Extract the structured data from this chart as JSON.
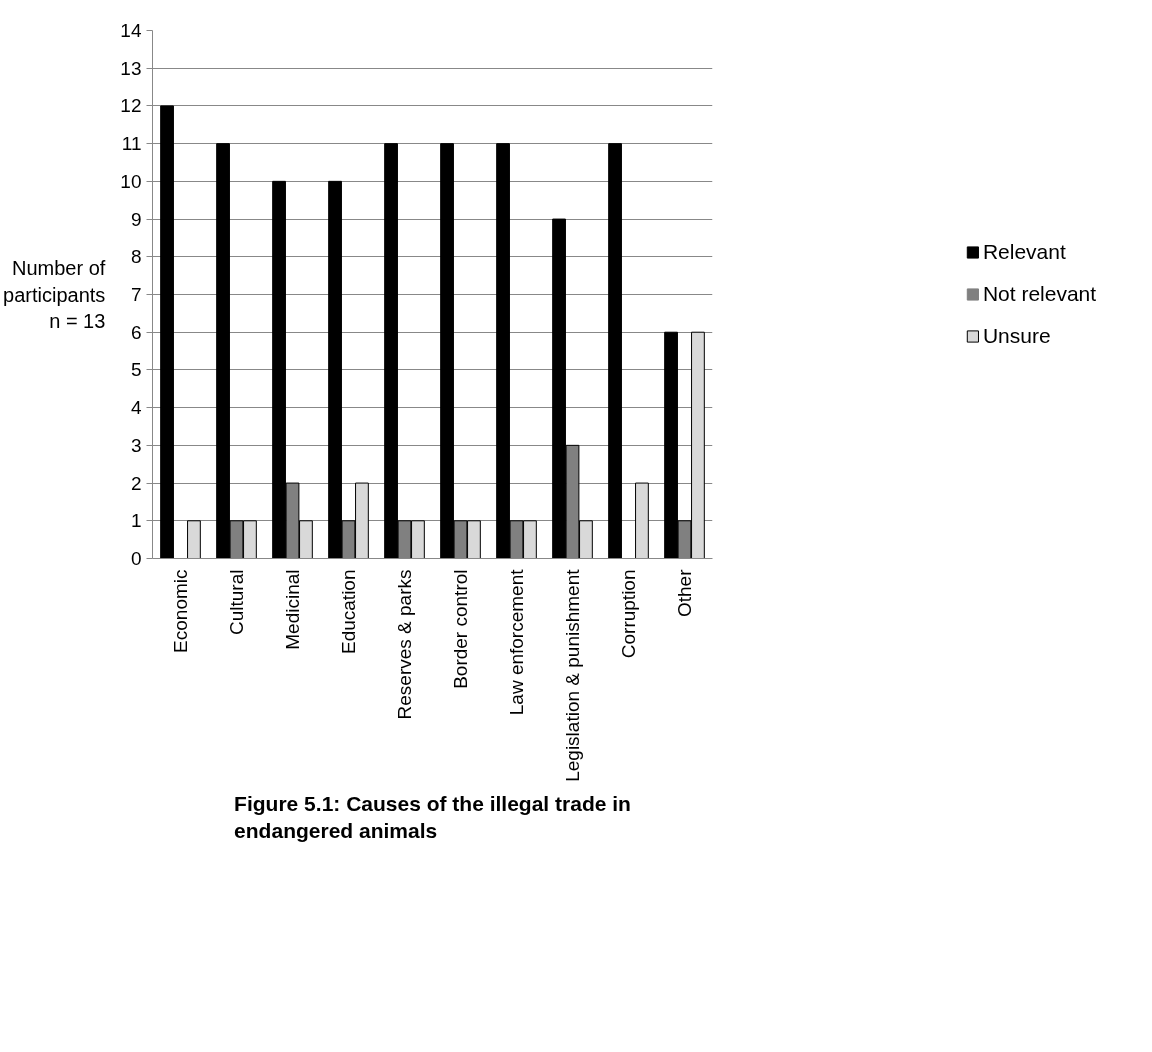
{
  "chart_data": {
    "type": "bar",
    "title": "Figure 5.1: Causes of the illegal trade in endangered animals",
    "ylabel": "Number of participants n = 13",
    "categories": [
      "Economic",
      "Cultural",
      "Medicinal",
      "Education",
      "Reserves & parks",
      "Border control",
      "Law enforcement",
      "Legislation & punishment",
      "Corruption",
      "Other"
    ],
    "series": [
      {
        "name": "Relevant",
        "color": "#000000",
        "values": [
          12,
          11,
          10,
          10,
          11,
          11,
          11,
          9,
          11,
          6
        ]
      },
      {
        "name": "Not relevant",
        "color": "#808080",
        "values": [
          0,
          1,
          2,
          1,
          1,
          1,
          1,
          3,
          0,
          1
        ]
      },
      {
        "name": "Unsure",
        "color": "#d9d9d9",
        "values": [
          1,
          1,
          1,
          2,
          1,
          1,
          1,
          1,
          2,
          6
        ]
      }
    ],
    "ylim": [
      0,
      14
    ],
    "yticks": [
      0,
      1,
      2,
      3,
      4,
      5,
      6,
      7,
      8,
      9,
      10,
      11,
      12,
      13,
      14
    ],
    "grid": "y",
    "legend": "right"
  }
}
